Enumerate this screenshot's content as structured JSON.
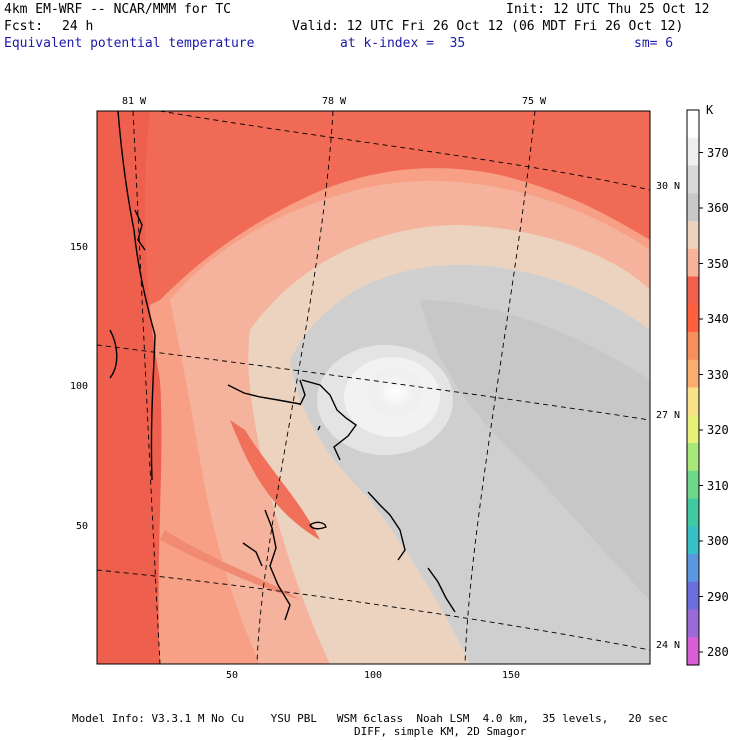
{
  "header": {
    "model": "4km EM-WRF -- NCAR/MMM for TC",
    "init": "Init: 12 UTC Thu 25 Oct 12",
    "fcst_label": "Fcst:",
    "fcst_value": "24 h",
    "valid": "Valid: 12 UTC Fri 26 Oct 12 (06 MDT Fri 26 Oct 12)",
    "field": "Equivalent potential temperature",
    "level": "at k-index =  35",
    "smoothing": "sm= 6"
  },
  "axes": {
    "x_ticks": [
      "50",
      "100",
      "150"
    ],
    "y_ticks": [
      "150",
      "100",
      "50"
    ],
    "lon_labels": [
      "81 W",
      "78 W",
      "75 W"
    ],
    "lat_labels": [
      "30 N",
      "27 N",
      "24 N"
    ]
  },
  "colorbar": {
    "unit": "K",
    "levels": [
      "370",
      "360",
      "350",
      "340",
      "330",
      "320",
      "310",
      "300",
      "290",
      "280"
    ],
    "colors": [
      "#ffffff",
      "#efefef",
      "#d8d8d8",
      "#c8c8c8",
      "#ecd3bf",
      "#f7b49a",
      "#f0604f",
      "#ff6040",
      "#f58f5e",
      "#f9ad6e",
      "#f9e28a",
      "#e8f07a",
      "#a8e87a",
      "#6fd68a",
      "#43c9a2",
      "#38bfc6",
      "#5a97e0",
      "#6b6fdc",
      "#9c6ad6",
      "#d85fd6"
    ]
  },
  "footer": {
    "line1": "Model Info: V3.3.1 M No Cu    YSU PBL   WSM 6class  Noah LSM  4.0 km,  35 levels,   20 sec",
    "line2": "DIFF, simple KM, 2D Smagor"
  }
}
